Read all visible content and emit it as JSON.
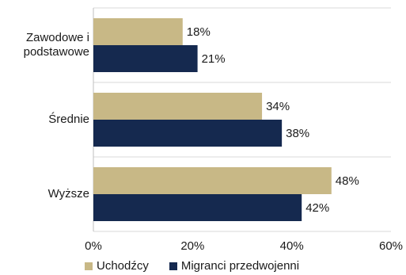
{
  "chart_data": {
    "type": "bar",
    "orientation": "horizontal",
    "categories": [
      "Zawodowe i\npodstawowe",
      "Średnie",
      "Wyższe"
    ],
    "series": [
      {
        "name": "Uchodźcy",
        "color": "#c8b886",
        "values": [
          18,
          34,
          48
        ],
        "labels": [
          "18%",
          "34%",
          "48%"
        ]
      },
      {
        "name": "Migranci przedwojenni",
        "color": "#15294f",
        "values": [
          21,
          38,
          42
        ],
        "labels": [
          "21%",
          "38%",
          "42%"
        ]
      }
    ],
    "xlim": [
      0,
      60
    ],
    "x_ticks": [
      0,
      20,
      40,
      60
    ],
    "x_tick_labels": [
      "0%",
      "20%",
      "40%",
      "60%"
    ],
    "grid": true,
    "legend_position": "bottom"
  }
}
